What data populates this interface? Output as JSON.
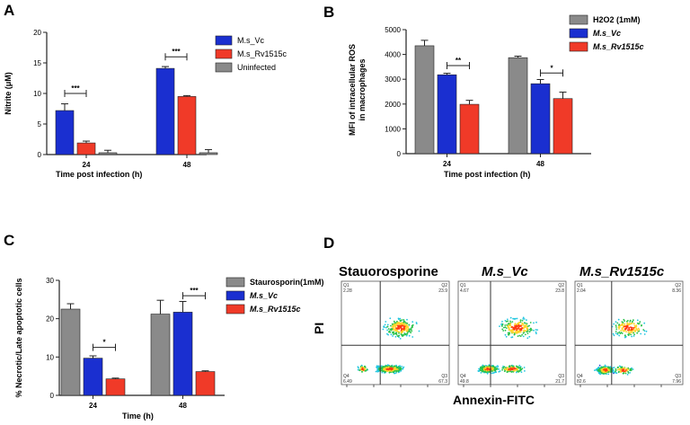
{
  "colors": {
    "mvc": "#1a2fd0",
    "rv": "#f03a28",
    "grey": "#8a8a8a",
    "axis": "#222222"
  },
  "chart_data": [
    {
      "panel": "A",
      "type": "bar",
      "ylabel": "Nitrite (μM)",
      "xlabel": "Time post infection (h)",
      "ylim": [
        0,
        20
      ],
      "yticks": [
        "0",
        "5",
        "10",
        "15",
        "20"
      ],
      "categories": [
        "24",
        "48"
      ],
      "legend": [
        "M.s_Vc",
        "M.s_Rv1515c",
        "Uninfected"
      ],
      "series": [
        {
          "name": "M.s_Vc",
          "color": "#1a2fd0",
          "values": [
            7.2,
            14.1
          ],
          "errors": [
            1.1,
            0.3
          ]
        },
        {
          "name": "M.s_Rv1515c",
          "color": "#f03a28",
          "values": [
            1.9,
            9.5
          ],
          "errors": [
            0.3,
            0.15
          ]
        },
        {
          "name": "Uninfected",
          "color": "#8a8a8a",
          "values": [
            0.3,
            0.3
          ],
          "errors": [
            0.4,
            0.5
          ]
        }
      ],
      "significance": [
        {
          "group": 0,
          "from": 0,
          "to": 1,
          "label": "***",
          "y": 10
        },
        {
          "group": 1,
          "from": 0,
          "to": 1,
          "label": "***",
          "y": 16
        }
      ]
    },
    {
      "panel": "B",
      "type": "bar",
      "ylabel": "MFI of intracellular ROS in macrophages",
      "ylabel_lines": [
        "MFI of intracellular ROS",
        "in macrophages"
      ],
      "xlabel": "Time post infection (h)",
      "ylim": [
        0,
        5000
      ],
      "yticks": [
        "0",
        "1000",
        "2000",
        "3000",
        "4000",
        "5000"
      ],
      "categories": [
        "24",
        "48"
      ],
      "legend": [
        "H2O2 (1mM)",
        "M.s_Vc",
        "M.s_Rv1515c"
      ],
      "series": [
        {
          "name": "H2O2 (1mM)",
          "color": "#8a8a8a",
          "values": [
            4350,
            3870
          ],
          "errors": [
            220,
            60
          ]
        },
        {
          "name": "M.s_Vc",
          "color": "#1a2fd0",
          "values": [
            3180,
            2820
          ],
          "errors": [
            60,
            170
          ]
        },
        {
          "name": "M.s_Rv1515c",
          "color": "#f03a28",
          "values": [
            1990,
            2220
          ],
          "errors": [
            160,
            260
          ]
        }
      ],
      "significance": [
        {
          "group": 0,
          "from": 1,
          "to": 2,
          "label": "**",
          "y": 3550
        },
        {
          "group": 1,
          "from": 1,
          "to": 2,
          "label": "*",
          "y": 3250
        }
      ]
    },
    {
      "panel": "C",
      "type": "bar",
      "ylabel": "% Necrotic/Late apoptotic cells",
      "xlabel": "Time (h)",
      "ylim": [
        0,
        30
      ],
      "yticks": [
        "0",
        "10",
        "20",
        "30"
      ],
      "categories": [
        "24",
        "48"
      ],
      "legend": [
        "Staurosporin(1mM)",
        "M.s_Vc",
        "M.s_Rv1515c"
      ],
      "series": [
        {
          "name": "Staurosporin(1mM)",
          "color": "#8a8a8a",
          "values": [
            22.5,
            21.2
          ],
          "errors": [
            1.4,
            3.6
          ]
        },
        {
          "name": "M.s_Vc",
          "color": "#1a2fd0",
          "values": [
            9.7,
            21.7
          ],
          "errors": [
            0.6,
            2.8
          ]
        },
        {
          "name": "M.s_Rv1515c",
          "color": "#f03a28",
          "values": [
            4.3,
            6.2
          ],
          "errors": [
            0.2,
            0.2
          ]
        }
      ],
      "significance": [
        {
          "group": 0,
          "from": 1,
          "to": 2,
          "label": "*",
          "y": 12.5
        },
        {
          "group": 1,
          "from": 1,
          "to": 2,
          "label": "***",
          "y": 26
        }
      ]
    }
  ],
  "flow": {
    "panel": "D",
    "xlabel": "Annexin-FITC",
    "ylabel": "PI",
    "plots": [
      {
        "title": "Stauorosporine",
        "q1": "2.28",
        "q2": "23.9",
        "q3": "67.3",
        "q4": "6.49"
      },
      {
        "title": "M.s_Vc",
        "q1": "4.67",
        "q2": "23.8",
        "q3": "21.7",
        "q4": "49.8"
      },
      {
        "title": "M.s_Rv1515c",
        "q1": "2.04",
        "q2": "8.36",
        "q3": "7.96",
        "q4": "82.6"
      }
    ],
    "quadrant_labels": [
      "Q1",
      "Q2",
      "Q3",
      "Q4"
    ]
  }
}
